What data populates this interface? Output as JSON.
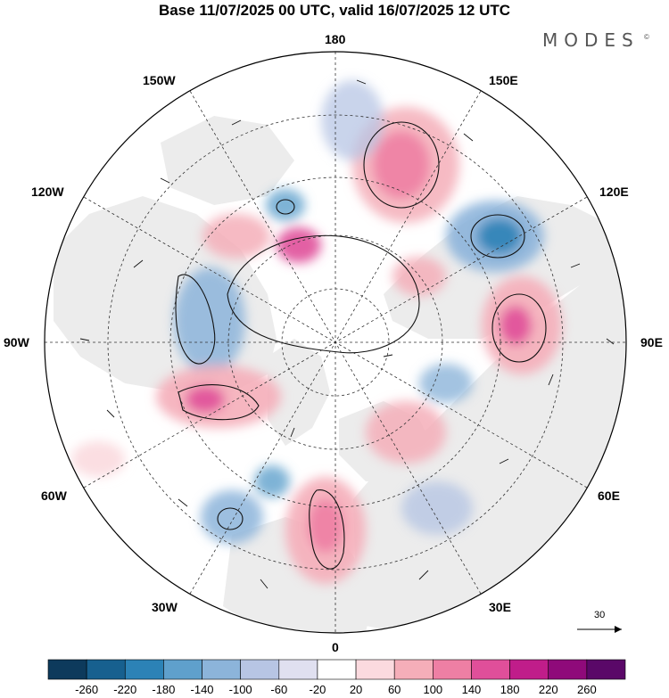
{
  "title": "Base 11/07/2025 00 UTC, valid 16/07/2025 12 UTC",
  "brand": {
    "name": "MODES",
    "mark": "©"
  },
  "map": {
    "projection": "north-polar-stereographic",
    "longitude_labels": {
      "top": "180",
      "bottom": "0",
      "left": "90W",
      "right": "90E",
      "ul1": "150W",
      "ul2": "120W",
      "ur1": "150E",
      "ur2": "120E",
      "ll1": "60W",
      "ll2": "30W",
      "lr1": "60E",
      "lr2": "30E"
    },
    "wind_reference": {
      "value": "30",
      "arrow": "reference-arrow"
    }
  },
  "colorbar": {
    "labels": [
      "-260",
      "-220",
      "-180",
      "-140",
      "-100",
      "-60",
      "-20",
      "20",
      "60",
      "100",
      "140",
      "180",
      "220",
      "260"
    ],
    "colors": [
      "#0d3a5c",
      "#17608f",
      "#2c82b6",
      "#5fa0cc",
      "#8cb4da",
      "#b7c5e4",
      "#e0e0f0",
      "#ffffff",
      "#fbdadf",
      "#f5aeb9",
      "#ee7fa4",
      "#e04f9a",
      "#c01d8a",
      "#8f0a7a",
      "#5a0868"
    ]
  },
  "palette": {
    "land": "#ececec",
    "ocean": "#ffffff",
    "grid": "#333333"
  }
}
